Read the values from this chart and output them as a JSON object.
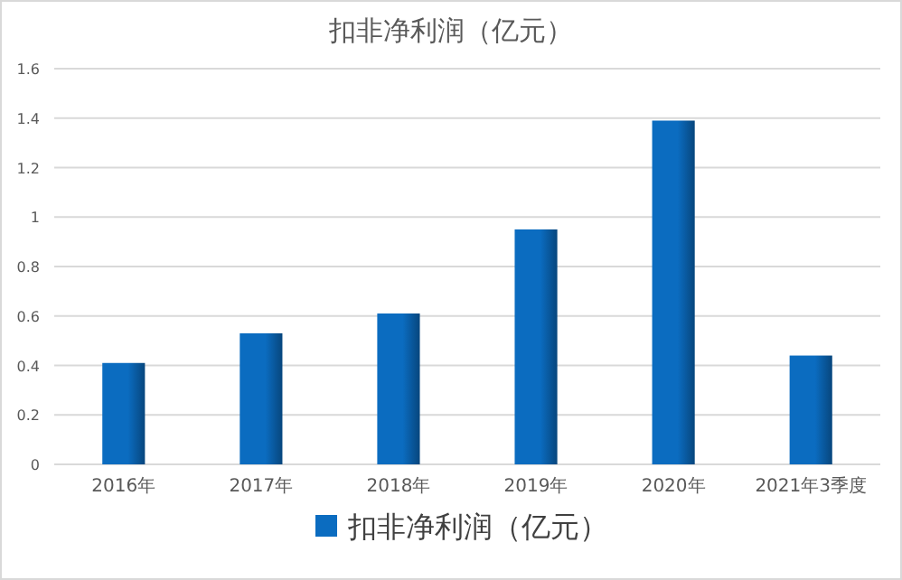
{
  "chart_data": {
    "type": "bar",
    "title": "扣非净利润（亿元）",
    "categories": [
      "2016年",
      "2017年",
      "2018年",
      "2019年",
      "2020年",
      "2021年3季度"
    ],
    "series": [
      {
        "name": "扣非净利润（亿元）",
        "color": "#0b6cc0",
        "values": [
          0.41,
          0.53,
          0.61,
          0.95,
          1.39,
          0.44
        ]
      }
    ],
    "ylim": [
      0,
      1.6
    ],
    "yticks": [
      0,
      0.2,
      0.4,
      0.6,
      0.8,
      1,
      1.2,
      1.4,
      1.6
    ],
    "grid": "y",
    "legend": "bottom"
  }
}
